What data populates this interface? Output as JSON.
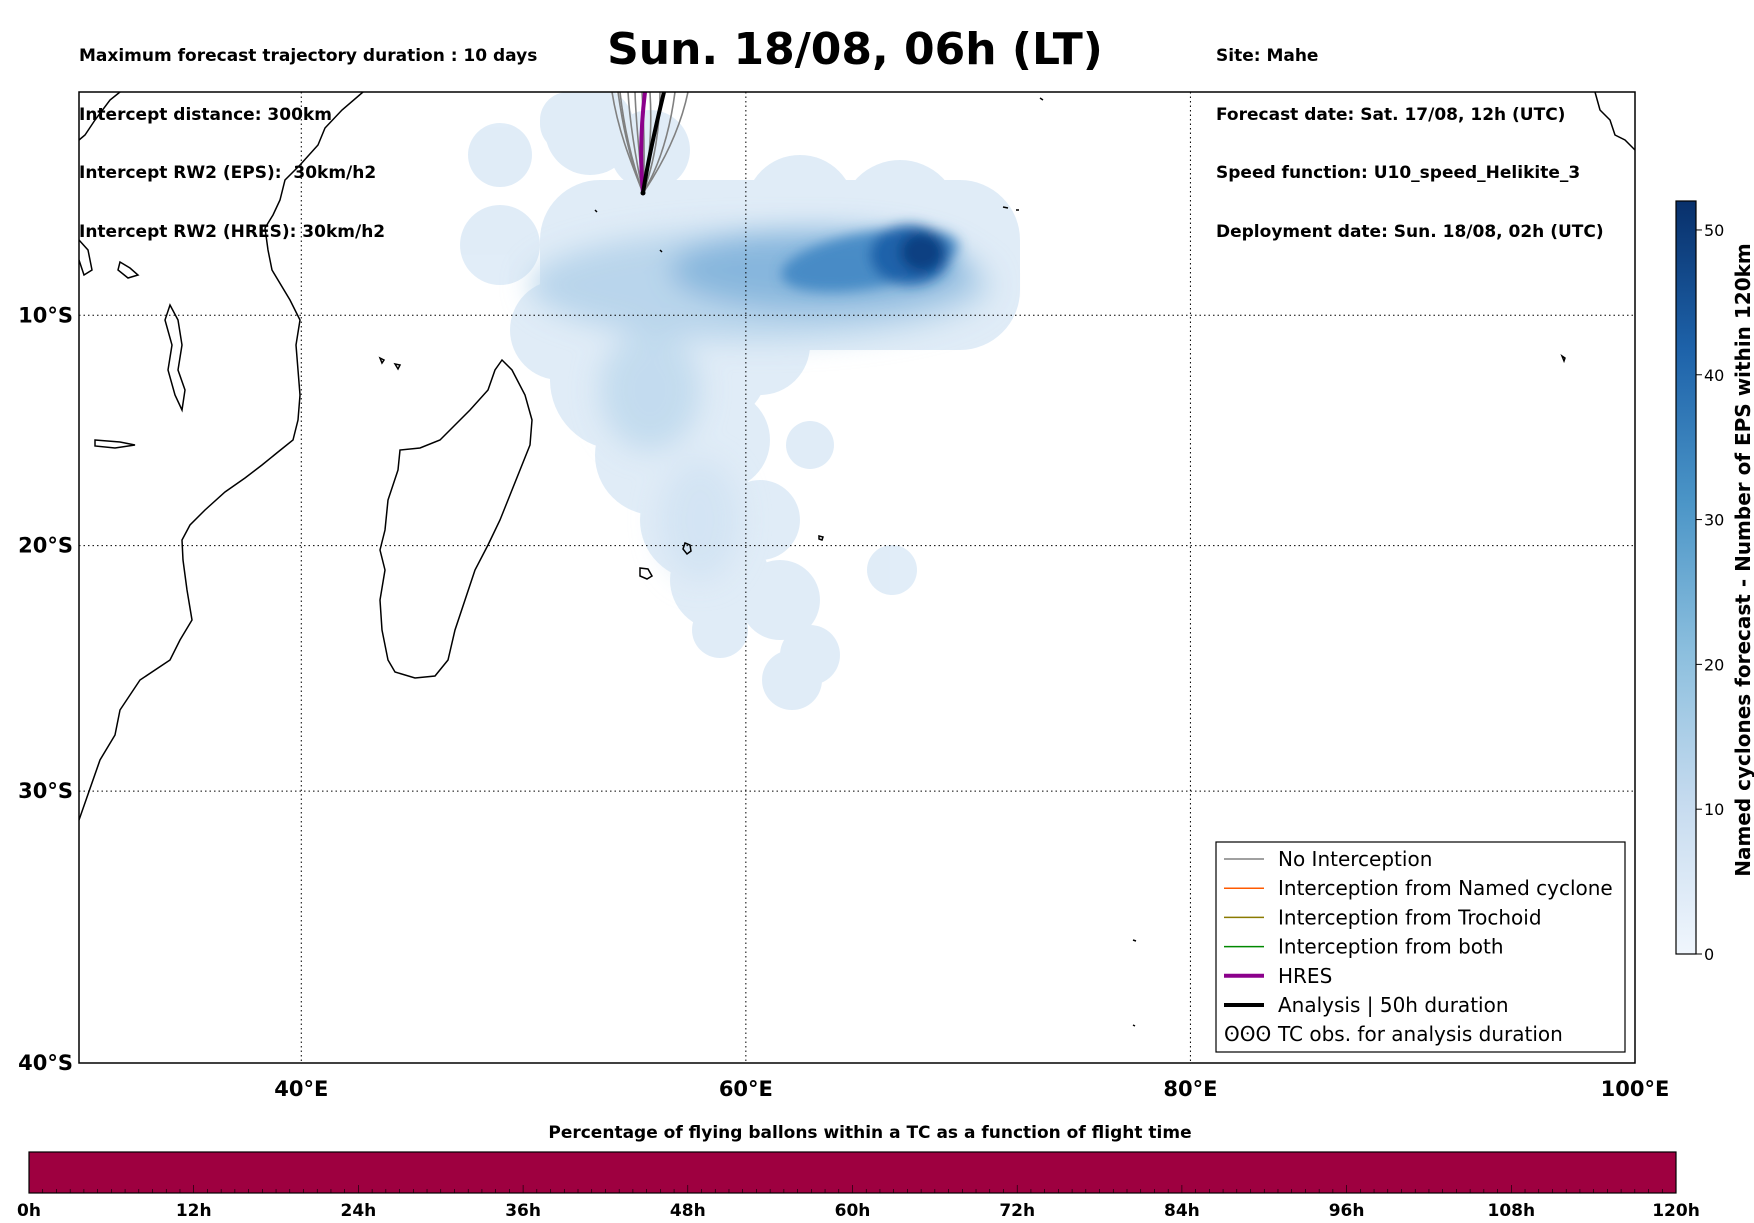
{
  "header": {
    "left_lines": [
      "Maximum forecast trajectory duration : 10 days",
      "Intercept distance: 300km",
      "Intercept RW2 (EPS):  30km/h2",
      "Intercept RW2 (HRES): 30km/h2"
    ],
    "title": "Sun. 18/08, 06h (LT)",
    "right_lines": [
      "Site: Mahe",
      "Forecast date: Sat. 17/08, 12h (UTC)",
      "Speed function: U10_speed_Helikite_3",
      "Deployment date: Sun. 18/08, 02h (UTC)"
    ]
  },
  "map": {
    "lon_range": [
      30,
      100
    ],
    "lat_range": [
      -40,
      0
    ],
    "lon_ticks": [
      {
        "value": 40,
        "label": "40°E"
      },
      {
        "value": 60,
        "label": "60°E"
      },
      {
        "value": 80,
        "label": "80°E"
      },
      {
        "value": 100,
        "label": "100°E"
      }
    ],
    "lat_ticks": [
      {
        "value": -10,
        "label": "10°S"
      },
      {
        "value": -20,
        "label": "20°S"
      },
      {
        "value": -30,
        "label": "30°S"
      },
      {
        "value": -40,
        "label": "40°S"
      }
    ],
    "launch_site": {
      "lon": 55.5,
      "lat": -4.6
    },
    "colors": {
      "no_interception": "#808080",
      "named_cyclone": "#ff5a00",
      "trochoid": "#8a7a00",
      "both": "#008800",
      "hres": "#8b008b",
      "analysis": "#000000",
      "density_low": "#deebf7",
      "density_high": "#08306b"
    }
  },
  "legend": {
    "items": [
      {
        "label": "No Interception",
        "color": "#808080",
        "width": 1.5,
        "kind": "line"
      },
      {
        "label": "Interception from Named cyclone",
        "color": "#ff5a00",
        "width": 1.5,
        "kind": "line"
      },
      {
        "label": "Interception from Trochoid",
        "color": "#8a7a00",
        "width": 1.5,
        "kind": "line"
      },
      {
        "label": "Interception from both",
        "color": "#008800",
        "width": 1.5,
        "kind": "line"
      },
      {
        "label": "HRES",
        "color": "#8b008b",
        "width": 4,
        "kind": "line"
      },
      {
        "label": "Analysis | 50h duration",
        "color": "#000000",
        "width": 4,
        "kind": "line"
      },
      {
        "label": "TC obs. for analysis duration",
        "color": "#000000",
        "width": 0,
        "kind": "symbol",
        "symbol": "ʘʘʘ"
      }
    ]
  },
  "colorbar": {
    "title": "Named cyclones forecast - Number of EPS within 120km",
    "min": 0,
    "max": 52,
    "ticks": [
      {
        "value": 0,
        "label": "0"
      },
      {
        "value": 10,
        "label": "10"
      },
      {
        "value": 20,
        "label": "20"
      },
      {
        "value": 30,
        "label": "30"
      },
      {
        "value": 40,
        "label": "40"
      },
      {
        "value": 50,
        "label": "50"
      }
    ]
  },
  "time_bar": {
    "title": "Percentage of flying ballons within a TC as a function of flight time",
    "color": "#9e0040",
    "max_hours": 120,
    "ticks": [
      "0h",
      "12h",
      "24h",
      "36h",
      "48h",
      "60h",
      "72h",
      "84h",
      "96h",
      "108h",
      "120h"
    ]
  }
}
